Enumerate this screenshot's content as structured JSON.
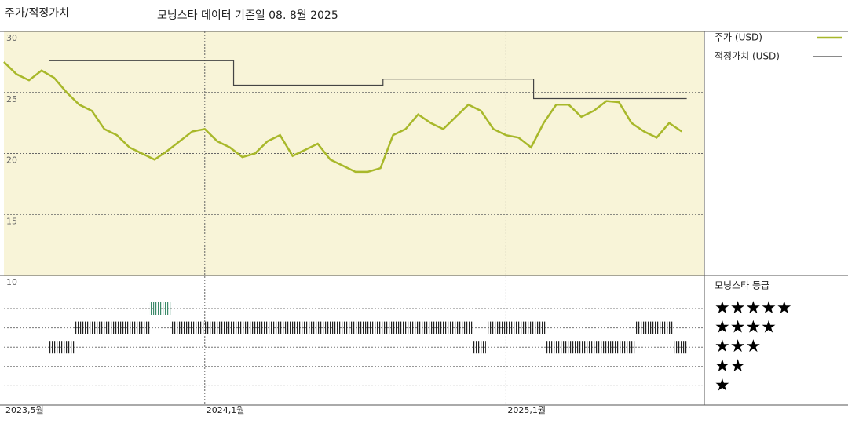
{
  "chart_data": {
    "type": "line",
    "title": "주가/적정가치",
    "subtitle": "모닝스타 데이터 기준일 08. 8월 2025",
    "xlim": [
      0,
      27.9
    ],
    "xticks": [
      {
        "value": 0,
        "label": "2023,5월"
      },
      {
        "value": 8,
        "label": "2024,1월"
      },
      {
        "value": 20,
        "label": "2025,1월"
      }
    ],
    "ylim": [
      10,
      30
    ],
    "yticks": [
      30,
      25,
      20,
      15,
      10
    ],
    "grid": true,
    "series": [
      {
        "name": "주가 (USD)",
        "color": "#a8b82a",
        "x": [
          0,
          0.5,
          1,
          1.5,
          2,
          2.5,
          3,
          3.5,
          4,
          4.5,
          5,
          5.5,
          6,
          6.5,
          7,
          7.5,
          8,
          8.5,
          9,
          9.5,
          10,
          10.5,
          11,
          11.5,
          12,
          12.5,
          13,
          13.5,
          14,
          14.5,
          15,
          15.5,
          16,
          16.5,
          17,
          17.5,
          18,
          18.5,
          19,
          19.5,
          20,
          20.5,
          21,
          21.5,
          22,
          22.5,
          23,
          23.5,
          24,
          24.5,
          25,
          25.5,
          26,
          26.5,
          27
        ],
        "values": [
          27.5,
          26.5,
          26,
          26.8,
          26.2,
          25,
          24,
          23.5,
          22,
          21.5,
          20.5,
          20,
          19.5,
          20.2,
          21,
          21.8,
          22,
          21,
          20.5,
          19.7,
          20,
          21,
          21.5,
          19.8,
          20.3,
          20.8,
          19.5,
          19,
          18.5,
          18.5,
          18.8,
          21.5,
          22,
          23.2,
          22.5,
          22,
          23,
          24,
          23.5,
          22,
          21.5,
          21.3,
          20.5,
          22.5,
          24,
          24,
          23,
          23.5,
          24.3,
          24.2,
          22.5,
          21.8,
          21.3,
          22.5,
          21.8
        ]
      },
      {
        "name": "적정가치 (USD)",
        "color": "#444444",
        "x": [
          1.8,
          9.15,
          9.15,
          15.1,
          15.1,
          21.1,
          21.1,
          27.2
        ],
        "values": [
          27.6,
          27.6,
          25.6,
          25.6,
          26.1,
          26.1,
          24.5,
          24.5
        ]
      }
    ],
    "rating_title": "모닝스타 등급",
    "star_labels": [
      "★★★★★",
      "★★★★",
      "★★★",
      "★★",
      "★"
    ],
    "star_levels": [
      5,
      4,
      3,
      2,
      1
    ],
    "rating_periods": [
      {
        "start": 1.8,
        "end": 2.8,
        "stars": 3
      },
      {
        "start": 2.8,
        "end": 5.8,
        "stars": 4
      },
      {
        "start": 5.8,
        "end": 6.65,
        "stars": 5
      },
      {
        "start": 6.65,
        "end": 18.7,
        "stars": 4
      },
      {
        "start": 18.7,
        "end": 19.2,
        "stars": 3
      },
      {
        "start": 19.25,
        "end": 21.6,
        "stars": 4
      },
      {
        "start": 21.6,
        "end": 25.15,
        "stars": 3
      },
      {
        "start": 25.15,
        "end": 26.7,
        "stars": 4
      },
      {
        "start": 26.7,
        "end": 27.2,
        "stars": 3
      }
    ]
  }
}
